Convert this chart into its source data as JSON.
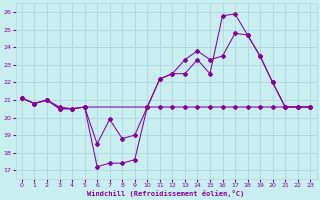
{
  "xlabel": "Windchill (Refroidissement éolien,°C)",
  "ylabel": "",
  "background_color": "#c8eef0",
  "grid_color": "#b0d8dc",
  "line_color": "#880099",
  "xlim": [
    -0.5,
    23.5
  ],
  "ylim": [
    16.5,
    26.5
  ],
  "yticks": [
    17,
    18,
    19,
    20,
    21,
    22,
    23,
    24,
    25,
    26
  ],
  "xticks": [
    0,
    1,
    2,
    3,
    4,
    5,
    6,
    7,
    8,
    9,
    10,
    11,
    12,
    13,
    14,
    15,
    16,
    17,
    18,
    19,
    20,
    21,
    22,
    23
  ],
  "series1_x": [
    0,
    1,
    2,
    3,
    4,
    5,
    6,
    7,
    8,
    9,
    10,
    11,
    12,
    13,
    14,
    15,
    16,
    17,
    18,
    19,
    20,
    21,
    22,
    23
  ],
  "series1_y": [
    21.1,
    20.8,
    21.0,
    20.6,
    20.5,
    20.6,
    17.2,
    17.4,
    17.4,
    17.6,
    20.6,
    22.2,
    22.5,
    22.5,
    23.3,
    22.5,
    25.8,
    25.9,
    24.7,
    23.5,
    22.0,
    20.6,
    20.6,
    20.6
  ],
  "series2_x": [
    0,
    1,
    2,
    3,
    4,
    5,
    6,
    7,
    8,
    9,
    10,
    11,
    12,
    13,
    14,
    15,
    16,
    17,
    18,
    19,
    20,
    21,
    22,
    23
  ],
  "series2_y": [
    21.1,
    20.8,
    21.0,
    20.5,
    20.5,
    20.6,
    18.5,
    19.9,
    18.8,
    19.0,
    20.6,
    22.2,
    22.5,
    23.3,
    23.8,
    23.3,
    23.5,
    24.8,
    24.7,
    23.5,
    22.0,
    20.6,
    20.6,
    20.6
  ],
  "series3_x": [
    0,
    1,
    2,
    3,
    4,
    5,
    10,
    11,
    12,
    13,
    14,
    15,
    16,
    17,
    18,
    19,
    20,
    21,
    22,
    23
  ],
  "series3_y": [
    21.1,
    20.8,
    21.0,
    20.5,
    20.5,
    20.6,
    20.6,
    20.6,
    20.6,
    20.6,
    20.6,
    20.6,
    20.6,
    20.6,
    20.6,
    20.6,
    20.6,
    20.6,
    20.6,
    20.6
  ]
}
